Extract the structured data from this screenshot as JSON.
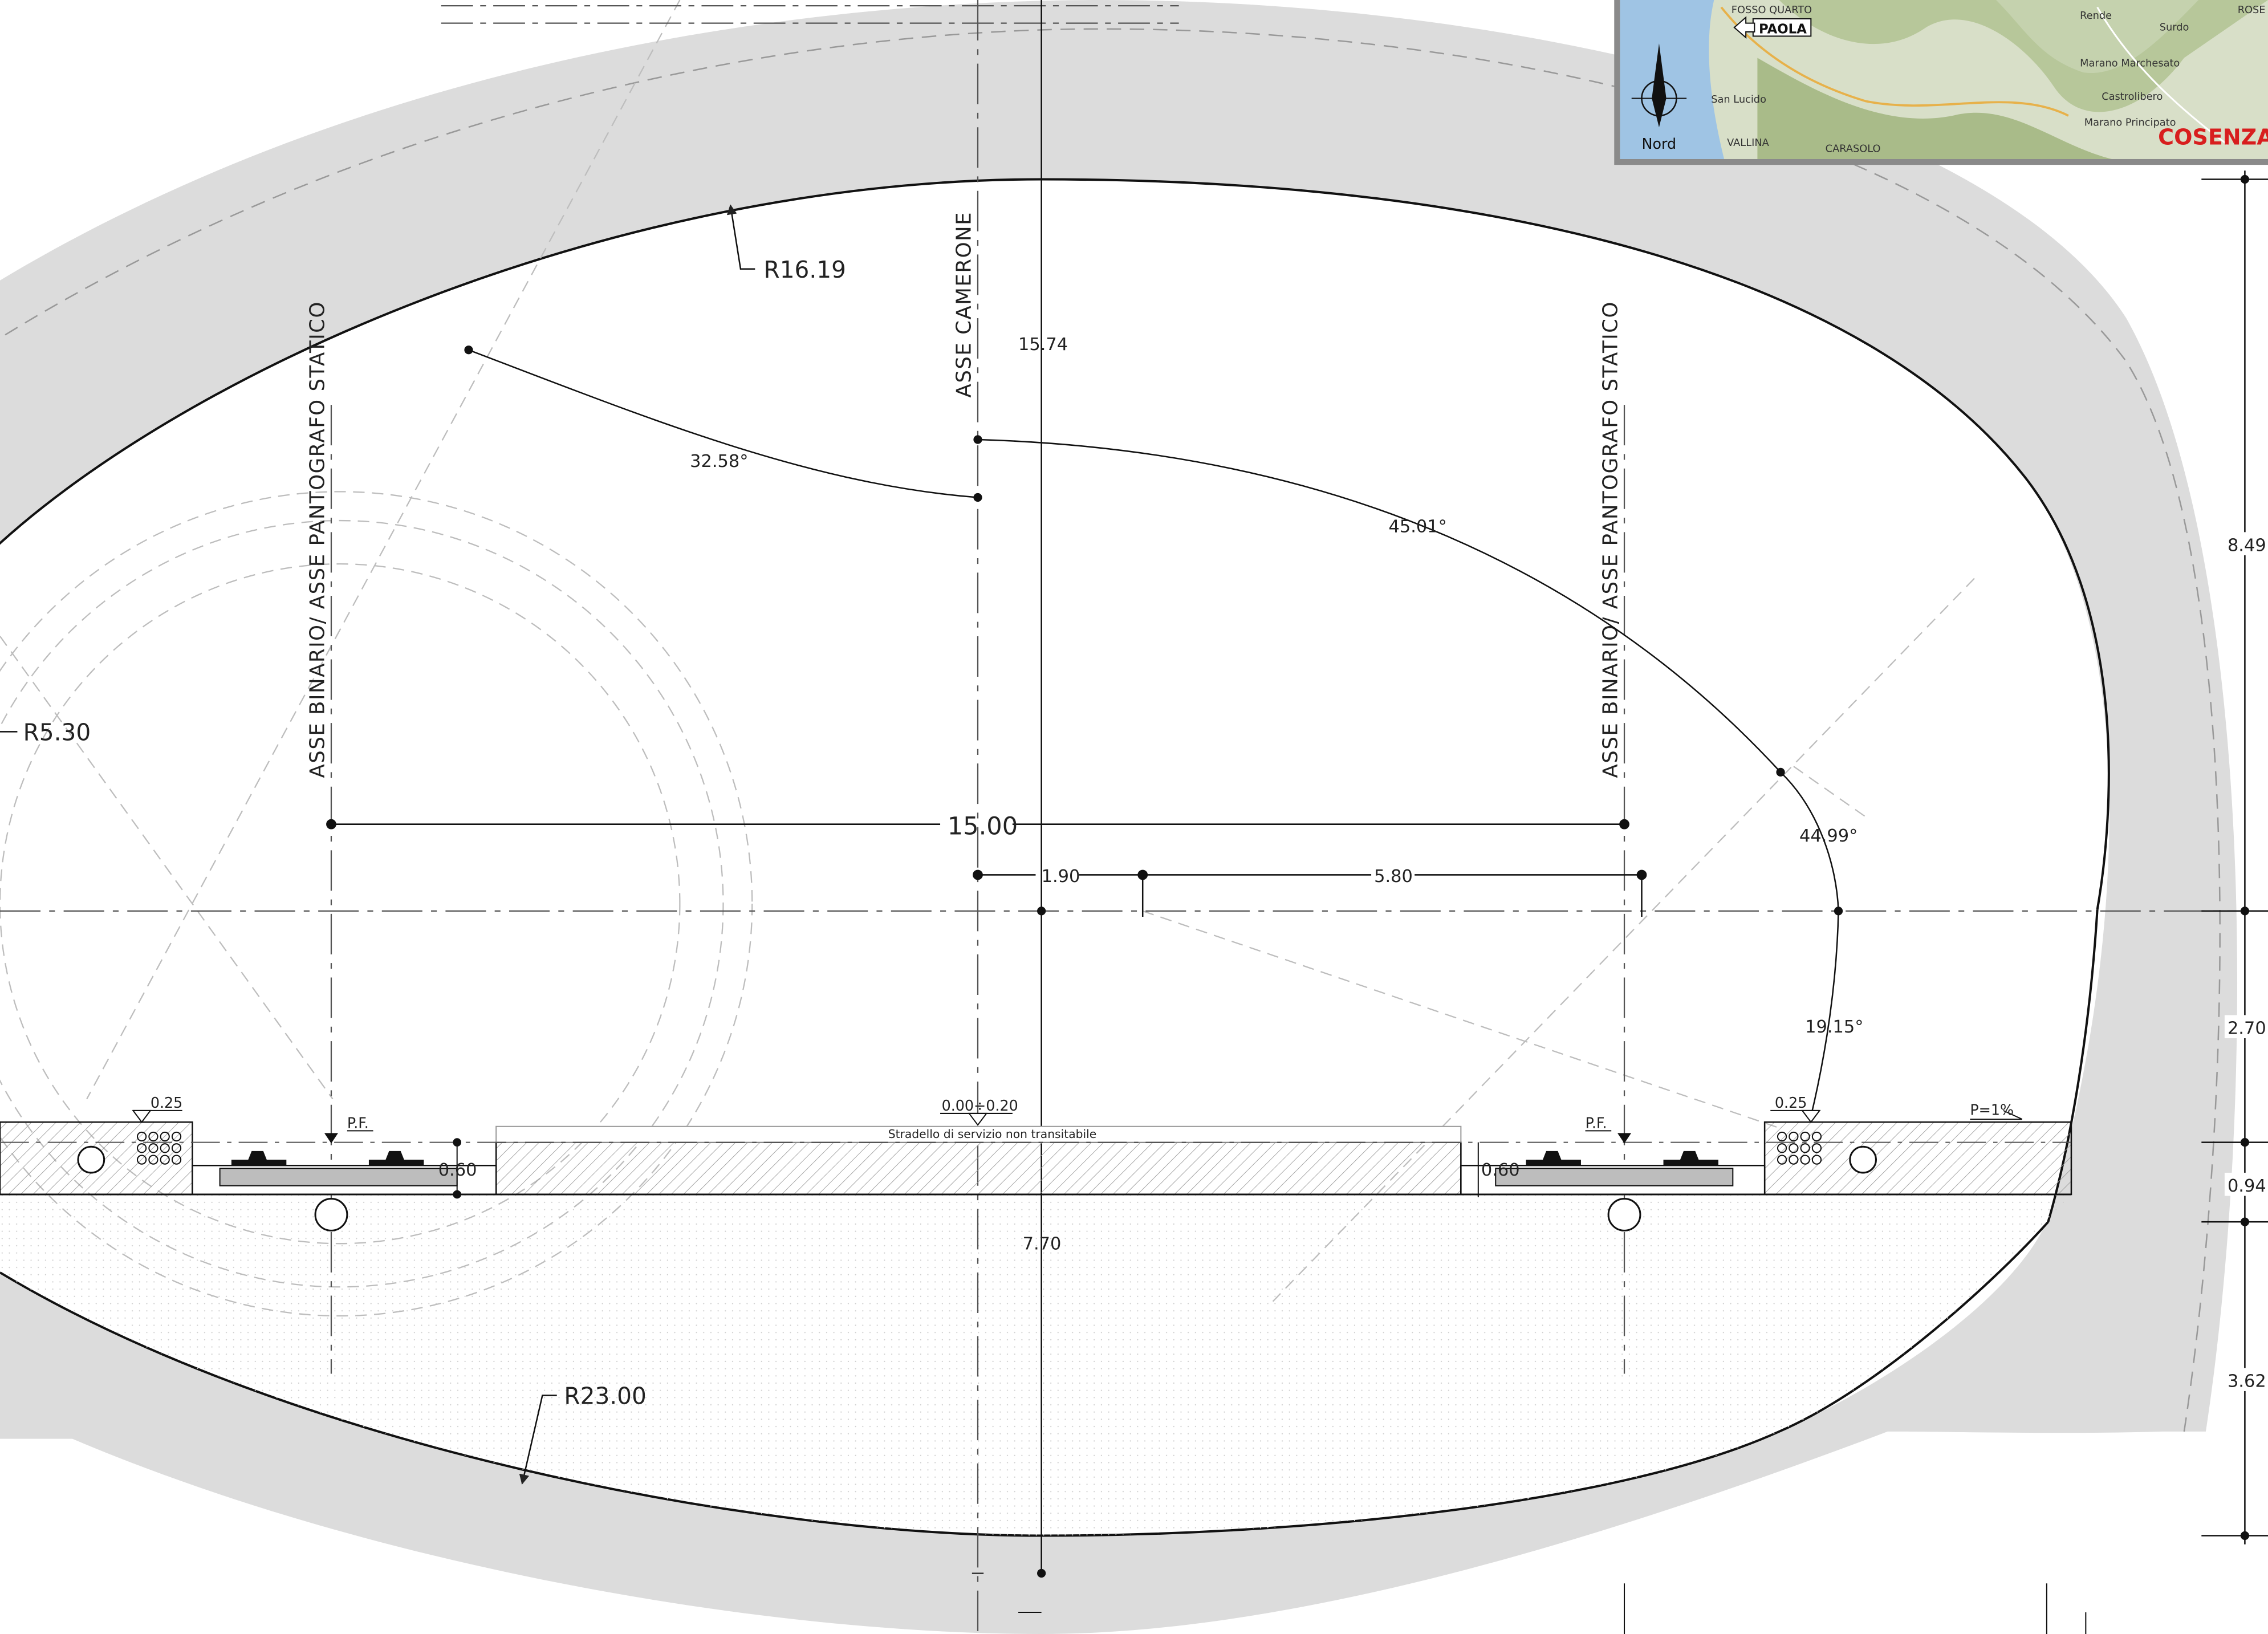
{
  "drawing": {
    "axis_labels": {
      "camerone": "ASSE CAMERONE",
      "binario_left": "ASSE BINARIO/ ASSE PANTOGRAFO STATICO",
      "binario_right": "ASSE BINARIO/ ASSE PANTOGRAFO STATICO"
    },
    "radii": {
      "crown": "R16.19",
      "invert": "R23.00",
      "side": "R5.30"
    },
    "angles": {
      "a1": "32.58°",
      "a2": "45.01°",
      "a3": "44.99°",
      "a4": "19.15°"
    },
    "dimensions": {
      "track_spacing": "15.00",
      "offset_1": "1.90",
      "offset_2": "5.80",
      "height_upper": "15.74",
      "height_lower": "7.70",
      "right_849": "8.49",
      "right_270": "2.70",
      "right_094": "0.94",
      "right_362": "3.62",
      "sleeper_left": "0.60",
      "sleeper_right": "0.60",
      "walkway_left": "0.25",
      "walkway_right": "0.25"
    },
    "annotations": {
      "pf_left": "P.F.",
      "pf_right": "P.F.",
      "level": "0.00÷0.20",
      "service_path": "Stradello di servizio non transitabile",
      "slope": "P=1%"
    }
  },
  "location_map": {
    "city": "COSENZA",
    "north": "Nord",
    "places": [
      "PAOLA",
      "FOSSO QUARTO",
      "San Lucido",
      "Rende",
      "Surdo",
      "Marano Marchesato",
      "Castrolibero",
      "Marano Principato",
      "VALLINA",
      "CARASOLO",
      "ROSE"
    ],
    "highlight_place": "PAOLA"
  }
}
